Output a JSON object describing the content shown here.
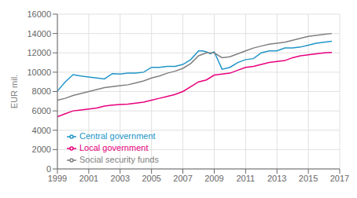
{
  "chart_data": {
    "type": "line",
    "ylabel": "EUR mil.",
    "xlim": [
      1999,
      2017
    ],
    "ylim": [
      0,
      16000
    ],
    "xticks": [
      1999,
      2001,
      2003,
      2005,
      2007,
      2009,
      2011,
      2013,
      2015,
      2017
    ],
    "yticks": [
      0,
      2000,
      4000,
      6000,
      8000,
      10000,
      12000,
      14000,
      16000
    ],
    "grid": true,
    "legend": "lower left",
    "series": [
      {
        "name": "Central government",
        "color": "#2196c8",
        "x": [
          1999,
          1999.5,
          2000,
          2000.5,
          2001,
          2001.5,
          2002,
          2002.5,
          2003,
          2003.5,
          2004,
          2004.5,
          2005,
          2005.5,
          2006,
          2006.5,
          2007,
          2007.5,
          2008,
          2008.25,
          2008.5,
          2008.75,
          2009,
          2009.5,
          2010,
          2010.5,
          2011,
          2011.5,
          2012,
          2012.5,
          2013,
          2013.5,
          2014,
          2014.5,
          2015,
          2015.5,
          2016,
          2016.5
        ],
        "values": [
          8050,
          9000,
          9750,
          9600,
          9500,
          9400,
          9300,
          9850,
          9800,
          9900,
          9900,
          10000,
          10500,
          10500,
          10600,
          10600,
          10800,
          11300,
          12200,
          12200,
          12100,
          11900,
          12100,
          10300,
          10500,
          11000,
          11300,
          11400,
          12000,
          12200,
          12200,
          12500,
          12500,
          12600,
          12800,
          13000,
          13100,
          13200
        ]
      },
      {
        "name": "Local government",
        "color": "#e8007d",
        "x": [
          1999,
          1999.5,
          2000,
          2000.5,
          2001,
          2001.5,
          2002,
          2002.5,
          2003,
          2003.5,
          2004,
          2004.5,
          2005,
          2005.5,
          2006,
          2006.5,
          2007,
          2007.5,
          2008,
          2008.5,
          2009,
          2009.5,
          2010,
          2010.5,
          2011,
          2011.5,
          2012,
          2012.5,
          2013,
          2013.5,
          2014,
          2014.5,
          2015,
          2015.5,
          2016,
          2016.5
        ],
        "values": [
          5400,
          5700,
          6000,
          6100,
          6200,
          6300,
          6500,
          6600,
          6650,
          6700,
          6800,
          6900,
          7100,
          7300,
          7500,
          7700,
          8000,
          8500,
          9000,
          9200,
          9700,
          9800,
          9900,
          10200,
          10500,
          10600,
          10800,
          11000,
          11100,
          11200,
          11500,
          11700,
          11800,
          11900,
          12000,
          12050
        ]
      },
      {
        "name": "Social security funds",
        "color": "#808080",
        "x": [
          1999,
          1999.5,
          2000,
          2000.5,
          2001,
          2001.5,
          2002,
          2002.5,
          2003,
          2003.5,
          2004,
          2004.5,
          2005,
          2005.5,
          2006,
          2006.5,
          2007,
          2007.5,
          2008,
          2008.5,
          2009,
          2009.5,
          2010,
          2010.5,
          2011,
          2011.5,
          2012,
          2012.5,
          2013,
          2013.5,
          2014,
          2014.5,
          2015,
          2015.5,
          2016,
          2016.5
        ],
        "values": [
          7100,
          7300,
          7600,
          7800,
          8000,
          8200,
          8400,
          8500,
          8600,
          8700,
          8900,
          9100,
          9400,
          9600,
          9900,
          10100,
          10400,
          10900,
          11700,
          12000,
          12000,
          11500,
          11600,
          11900,
          12200,
          12500,
          12700,
          12900,
          13000,
          13100,
          13300,
          13500,
          13700,
          13800,
          13900,
          14000
        ]
      }
    ]
  }
}
